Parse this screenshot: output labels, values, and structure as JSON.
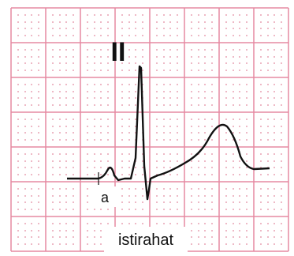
{
  "lead_label": "II",
  "marker_label": "a",
  "caption": "istirahat"
}
